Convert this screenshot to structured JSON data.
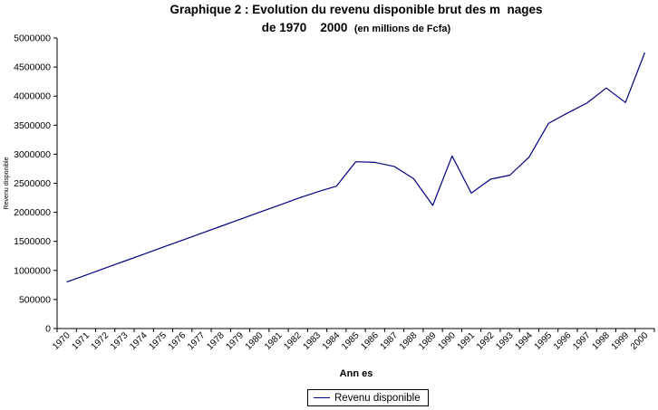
{
  "chart": {
    "title_line1": "Graphique 2 : Evolution du revenu disponible brut des m  nages",
    "title_line2": "de 1970    2000  ",
    "title_subtitle": "(en millions de Fcfa)",
    "xlabel": "Ann es",
    "ylabel": "Revenu disponible",
    "series_name": "Revenu disponible",
    "line_color": "#000080",
    "axis_color": "#000000",
    "text_color": "#000000",
    "background_color": "#ffffff"
  },
  "chart_data": {
    "type": "line",
    "title": "Graphique 2 : Evolution du revenu disponible brut des m  nages de 1970    2000 (en millions de Fcfa)",
    "xlabel": "Ann es",
    "ylabel": "Revenu disponible",
    "x": [
      1970,
      1971,
      1972,
      1973,
      1974,
      1975,
      1976,
      1977,
      1978,
      1979,
      1980,
      1981,
      1982,
      1983,
      1984,
      1985,
      1986,
      1987,
      1988,
      1989,
      1990,
      1991,
      1992,
      1993,
      1994,
      1995,
      1996,
      1997,
      1998,
      1999,
      2000
    ],
    "series": [
      {
        "name": "Revenu disponible",
        "color": "#000080",
        "values": [
          800000,
          920000,
          1040000,
          1160000,
          1280000,
          1400000,
          1520000,
          1640000,
          1760000,
          1880000,
          2000000,
          2120000,
          2240000,
          2350000,
          2450000,
          2870000,
          2860000,
          2790000,
          2580000,
          2120000,
          2970000,
          2330000,
          2570000,
          2640000,
          2950000,
          3530000,
          3710000,
          3880000,
          4140000,
          3890000,
          4750000
        ]
      }
    ],
    "ylim": [
      0,
      5000000
    ],
    "ytick_step": 500000,
    "ytick_labels": [
      "0",
      "500000",
      "1000000",
      "1500000",
      "2000000",
      "2500000",
      "3000000",
      "3500000",
      "4000000",
      "4500000",
      "5000000"
    ],
    "grid": false,
    "legend_position": "bottom",
    "legend_entries": [
      "Revenu disponible"
    ]
  }
}
